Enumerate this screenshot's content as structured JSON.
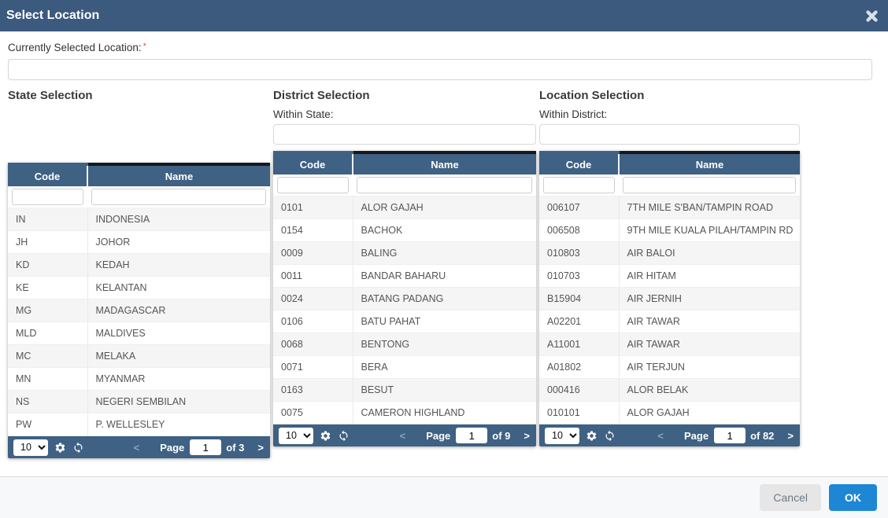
{
  "colors": {
    "header_bar": "#3b5a7e",
    "table_header": "#3e6184",
    "ok_button": "#1e87d5",
    "required_marker": "#d9534f"
  },
  "modal": {
    "title": "Select Location"
  },
  "form": {
    "label": "Currently Selected Location:",
    "required": "*",
    "value": "",
    "placeholder": ""
  },
  "pager_shared": {
    "page_label": "Page",
    "prev": "<",
    "next": ">"
  },
  "panels": [
    {
      "title": "State Selection",
      "sub_label": "",
      "columns": [
        "Code",
        "Name"
      ],
      "filters": {
        "code": "",
        "name": ""
      },
      "rows": [
        {
          "code": "IN",
          "name": "INDONESIA"
        },
        {
          "code": "JH",
          "name": "JOHOR"
        },
        {
          "code": "KD",
          "name": "KEDAH"
        },
        {
          "code": "KE",
          "name": "KELANTAN"
        },
        {
          "code": "MG",
          "name": "MADAGASCAR"
        },
        {
          "code": "MLD",
          "name": "MALDIVES"
        },
        {
          "code": "MC",
          "name": "MELAKA"
        },
        {
          "code": "MN",
          "name": "MYANMAR"
        },
        {
          "code": "NS",
          "name": "NEGERI SEMBILAN"
        },
        {
          "code": "PW",
          "name": "P. WELLESLEY"
        }
      ],
      "pager": {
        "page_size": "10",
        "page": "1",
        "of": "of 3"
      }
    },
    {
      "title": "District Selection",
      "sub_label": "Within State:",
      "sub_value": "",
      "columns": [
        "Code",
        "Name"
      ],
      "filters": {
        "code": "",
        "name": ""
      },
      "rows": [
        {
          "code": "0101",
          "name": "ALOR GAJAH"
        },
        {
          "code": "0154",
          "name": "BACHOK"
        },
        {
          "code": "0009",
          "name": "BALING"
        },
        {
          "code": "0011",
          "name": "BANDAR BAHARU"
        },
        {
          "code": "0024",
          "name": "BATANG PADANG"
        },
        {
          "code": "0106",
          "name": "BATU PAHAT"
        },
        {
          "code": "0068",
          "name": "BENTONG"
        },
        {
          "code": "0071",
          "name": "BERA"
        },
        {
          "code": "0163",
          "name": "BESUT"
        },
        {
          "code": "0075",
          "name": "CAMERON HIGHLAND"
        }
      ],
      "pager": {
        "page_size": "10",
        "page": "1",
        "of": "of 9"
      }
    },
    {
      "title": "Location Selection",
      "sub_label": "Within District:",
      "sub_value": "",
      "columns": [
        "Code",
        "Name"
      ],
      "filters": {
        "code": "",
        "name": ""
      },
      "rows": [
        {
          "code": "006107",
          "name": "7TH MILE S'BAN/TAMPIN ROAD"
        },
        {
          "code": "006508",
          "name": "9TH MILE KUALA PILAH/TAMPIN RD"
        },
        {
          "code": "010803",
          "name": "AIR BALOI"
        },
        {
          "code": "010703",
          "name": "AIR HITAM"
        },
        {
          "code": "B15904",
          "name": "AIR JERNIH"
        },
        {
          "code": "A02201",
          "name": "AIR TAWAR"
        },
        {
          "code": "A11001",
          "name": "AIR TAWAR"
        },
        {
          "code": "A01802",
          "name": "AIR TERJUN"
        },
        {
          "code": "000416",
          "name": "ALOR BELAK"
        },
        {
          "code": "010101",
          "name": "ALOR GAJAH"
        }
      ],
      "pager": {
        "page_size": "10",
        "page": "1",
        "of": "of 82"
      }
    }
  ],
  "footer": {
    "cancel_label": "Cancel",
    "ok_label": "OK"
  }
}
